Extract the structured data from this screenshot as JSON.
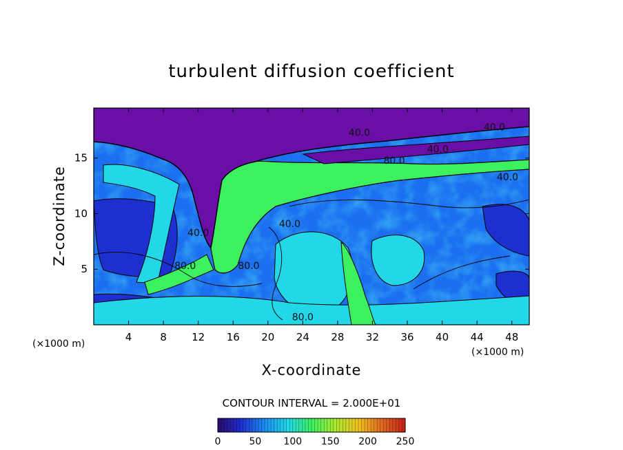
{
  "chart_data": {
    "type": "heatmap",
    "title": "turbulent diffusion coefficient",
    "xlabel": "X-coordinate",
    "ylabel": "Z-coordinate",
    "x_unit": "(×1000 m)",
    "y_unit": "(×1000 m)",
    "xlim": [
      0,
      50
    ],
    "ylim": [
      0,
      19.5
    ],
    "x_ticks": [
      4,
      8,
      12,
      16,
      20,
      24,
      28,
      32,
      36,
      40,
      44,
      48
    ],
    "y_ticks": [
      5,
      10,
      15
    ],
    "contour_interval_text": "CONTOUR INTERVAL = 2.000E+01",
    "colorbar": {
      "range": [
        0,
        250
      ],
      "ticks": [
        0,
        50,
        100,
        150,
        200,
        250
      ],
      "colors": [
        "#2a0a6e",
        "#1e2fd0",
        "#1a8cf0",
        "#22d8e8",
        "#3cf060",
        "#a8e830",
        "#f0c020",
        "#e06a20",
        "#c82018"
      ]
    },
    "contour_labels": [
      {
        "text": "40.0",
        "x": 30.5,
        "y": 17.0
      },
      {
        "text": "40.0",
        "x": 46.0,
        "y": 17.5
      },
      {
        "text": "80.0",
        "x": 34.5,
        "y": 14.5
      },
      {
        "text": "40.0",
        "x": 39.5,
        "y": 15.5
      },
      {
        "text": "40.0",
        "x": 47.5,
        "y": 13.0
      },
      {
        "text": "40.0",
        "x": 22.5,
        "y": 8.8
      },
      {
        "text": "40.0",
        "x": 12.0,
        "y": 8.0
      },
      {
        "text": "80.0",
        "x": 10.5,
        "y": 5.0
      },
      {
        "text": "80.0",
        "x": 17.8,
        "y": 5.0
      },
      {
        "text": "80.0",
        "x": 24.0,
        "y": 0.4
      }
    ],
    "colors": {
      "stratosphere": "#6a0ea8",
      "background": "#1b6ff0",
      "low": "#1e2fd0",
      "mid": "#22d8e8",
      "high": "#3cf060"
    }
  }
}
